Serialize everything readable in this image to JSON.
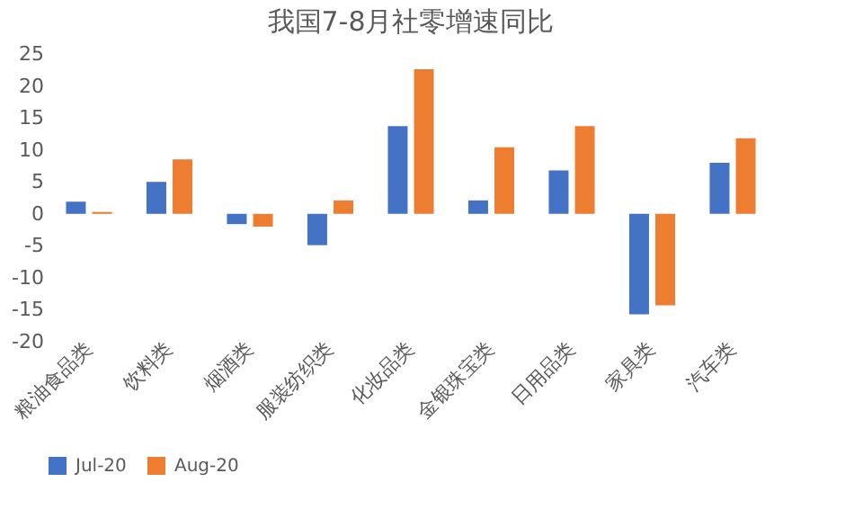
{
  "chart_data": {
    "type": "bar",
    "title": "我国7-8月社零增速同比",
    "categories": [
      "粮油食品类",
      "饮料类",
      "烟酒类",
      "服装纺织类",
      "化妆品类",
      "金银珠宝类",
      "日用品类",
      "家具类",
      "汽车类"
    ],
    "series": [
      {
        "name": "Jul-20",
        "color": "#4472c4",
        "values": [
          1.9,
          5.0,
          -1.6,
          -4.9,
          13.7,
          2.1,
          6.8,
          -15.7,
          8.0
        ]
      },
      {
        "name": "Aug-20",
        "color": "#ed7d31",
        "values": [
          0.3,
          8.5,
          -2.0,
          2.1,
          22.6,
          10.4,
          13.7,
          -14.3,
          11.8
        ]
      }
    ],
    "ylim": [
      -20,
      25
    ],
    "yticks": [
      -20,
      -15,
      -10,
      -5,
      0,
      5,
      10,
      15,
      20,
      25
    ],
    "grid": false,
    "legend": "bottom"
  }
}
